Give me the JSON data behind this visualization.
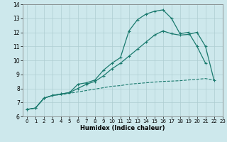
{
  "xlabel": "Humidex (Indice chaleur)",
  "x_values": [
    0,
    1,
    2,
    3,
    4,
    5,
    6,
    7,
    8,
    9,
    10,
    11,
    12,
    13,
    14,
    15,
    16,
    17,
    18,
    19,
    20,
    21,
    22
  ],
  "line1": [
    6.5,
    6.6,
    7.3,
    7.5,
    7.6,
    7.7,
    8.3,
    8.4,
    8.6,
    9.3,
    9.8,
    10.2,
    12.1,
    12.9,
    13.3,
    13.5,
    13.6,
    13.0,
    11.9,
    12.0,
    11.0,
    9.8,
    null
  ],
  "line2": [
    6.5,
    6.6,
    7.3,
    7.5,
    7.6,
    7.7,
    8.0,
    8.3,
    8.5,
    8.9,
    9.4,
    9.8,
    10.3,
    10.8,
    11.3,
    11.8,
    12.1,
    11.9,
    11.8,
    11.85,
    12.0,
    11.0,
    8.6
  ],
  "line3": [
    6.5,
    6.6,
    7.3,
    7.5,
    7.55,
    7.65,
    7.75,
    7.85,
    7.95,
    8.05,
    8.15,
    8.2,
    8.3,
    8.35,
    8.4,
    8.45,
    8.5,
    8.52,
    8.55,
    8.6,
    8.65,
    8.7,
    8.6
  ],
  "line_color": "#1a7a6e",
  "bg_color": "#cde8ec",
  "grid_color": "#aecdd1",
  "ylim": [
    6,
    14
  ],
  "xlim": [
    -0.5,
    22.5
  ],
  "yticks": [
    6,
    7,
    8,
    9,
    10,
    11,
    12,
    13,
    14
  ],
  "xticks": [
    0,
    1,
    2,
    3,
    4,
    5,
    6,
    7,
    8,
    9,
    10,
    11,
    12,
    13,
    14,
    15,
    16,
    17,
    18,
    19,
    20,
    21,
    22,
    23
  ]
}
